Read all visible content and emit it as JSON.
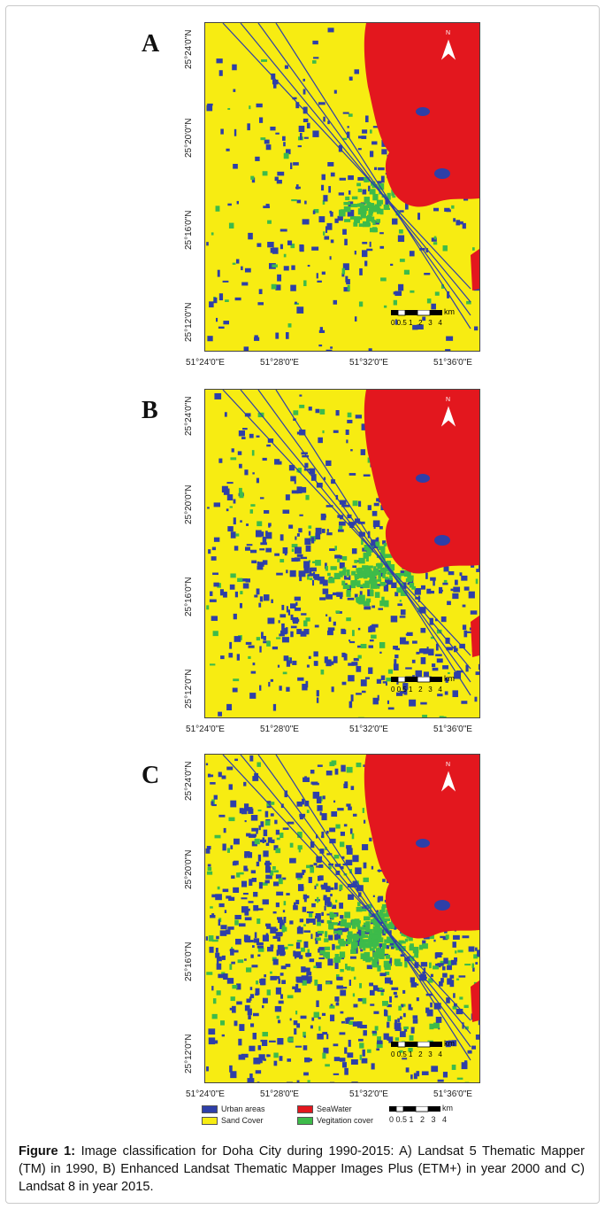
{
  "figure": {
    "panels": [
      {
        "letter": "A",
        "lat_ticks": [
          "25°24'0\"N",
          "25°20'0\"N",
          "25°16'0\"N",
          "25°12'0\"N"
        ],
        "lon_ticks": [
          "51°24'0\"E",
          "51°28'0\"E",
          "51°32'0\"E",
          "51°36'0\"E"
        ],
        "north": "N",
        "scale_label": "0 0.5 1   2   3   4",
        "scale_unit": "km"
      },
      {
        "letter": "B",
        "lat_ticks": [
          "25°24'0\"N",
          "25°20'0\"N",
          "25°16'0\"N",
          "25°12'0\"N"
        ],
        "lon_ticks": [
          "51°24'0\"E",
          "51°28'0\"E",
          "51°32'0\"E",
          "51°36'0\"E"
        ],
        "north": "N",
        "scale_label": "0 0.5 1   2   3   4",
        "scale_unit": "km"
      },
      {
        "letter": "C",
        "lat_ticks": [
          "25°24'0\"N",
          "25°20'0\"N",
          "25°16'0\"N",
          "25°12'0\"N"
        ],
        "lon_ticks": [
          "51°24'0\"E",
          "51°28'0\"E",
          "51°32'0\"E",
          "51°36'0\"E"
        ],
        "north": "N",
        "scale_label": "0 0.5 1   2   3   4",
        "scale_unit": "km"
      }
    ],
    "legend": {
      "items": [
        {
          "label": "Urban areas",
          "color": "#2e3fa8"
        },
        {
          "label": "Sand Cover",
          "color": "#f7ec12"
        },
        {
          "label": "SeaWater",
          "color": "#e3171e"
        },
        {
          "label": "Vegitation cover",
          "color": "#3dbb4a"
        }
      ],
      "scale_label": "0 0.5 1   2   3   4",
      "scale_unit": "km"
    },
    "caption_lead": "Figure 1:",
    "caption_text": " Image classification for Doha City during 1990-2015: A) Landsat 5 Thematic Mapper (TM) in 1990, B) Enhanced Landsat Thematic Mapper Images Plus (ETM+) in year 2000 and C) Landsat 8 in year 2015."
  },
  "colors": {
    "urban": "#2e3fa8",
    "sand": "#f7ec12",
    "sea": "#e3171e",
    "veg": "#3dbb4a"
  }
}
